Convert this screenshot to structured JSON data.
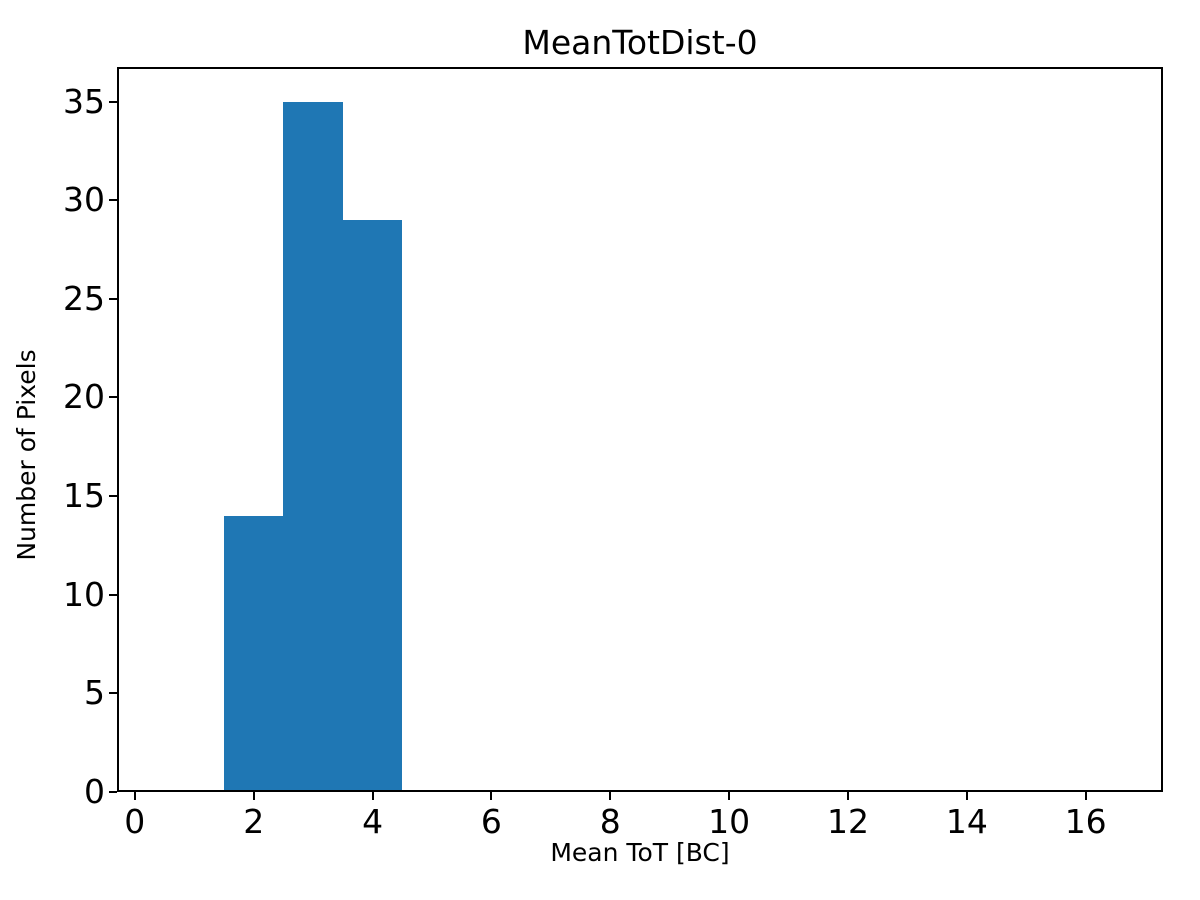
{
  "chart_data": {
    "type": "bar",
    "subtype": "histogram",
    "title": "MeanTotDist-0",
    "xlabel": "Mean ToT [BC]",
    "ylabel": "Number of Pixels",
    "bar_color": "#1f77b4",
    "axis_color": "#000000",
    "background_color": "#ffffff",
    "grid": false,
    "legend": null,
    "xlim": [
      -0.3,
      17.3
    ],
    "ylim": [
      0,
      36.75
    ],
    "x_ticks": [
      0,
      2,
      4,
      6,
      8,
      10,
      12,
      14,
      16
    ],
    "y_ticks": [
      0,
      5,
      10,
      15,
      20,
      25,
      30,
      35
    ],
    "bins": [
      {
        "x0": 1.5,
        "x1": 2.5,
        "count": 14
      },
      {
        "x0": 2.5,
        "x1": 3.5,
        "count": 35
      },
      {
        "x0": 3.5,
        "x1": 4.5,
        "count": 29
      }
    ]
  }
}
